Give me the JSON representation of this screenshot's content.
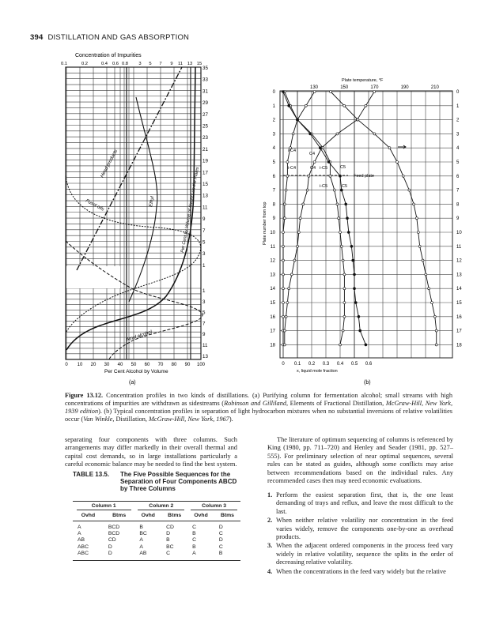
{
  "header": {
    "page_number": "394",
    "running_title": "DISTILLATION AND GAS ABSORPTION"
  },
  "figure_a": {
    "top_title": "Concentration of Impurities",
    "top_ticks": [
      "0.1",
      "0.2",
      "0.4",
      "0.6",
      "0.8",
      "3",
      "5",
      "7",
      "9",
      "11",
      "13",
      "15"
    ],
    "right_ticks_upper": [
      "35",
      "33",
      "31",
      "29",
      "27",
      "25",
      "23",
      "21",
      "19",
      "17",
      "15",
      "13",
      "11",
      "9",
      "7",
      "5",
      "3",
      "1"
    ],
    "right_ticks_lower": [
      "1",
      "3",
      "5",
      "7",
      "9",
      "11",
      "13"
    ],
    "bottom_ticks": [
      "0",
      "10",
      "20",
      "30",
      "40",
      "50",
      "60",
      "70",
      "80",
      "90",
      "100"
    ],
    "xlabel": "Per Cent Alcohol by Volume",
    "curve_labels": {
      "head": "Head products",
      "fusel": "Fusel oils",
      "ethyl": "Ethyl",
      "alcohol": "Per Cent by Volume of Alcohol on the Plates",
      "amyl": "Amyl alcohol"
    },
    "panel": "(a)"
  },
  "figure_b": {
    "top_title": "Plate temperature, °F",
    "top_ticks": [
      "130",
      "150",
      "170",
      "190",
      "210"
    ],
    "plates": [
      "0",
      "1",
      "2",
      "3",
      "4",
      "5",
      "6",
      "7",
      "8",
      "9",
      "10",
      "11",
      "12",
      "13",
      "14",
      "15",
      "16",
      "17",
      "18"
    ],
    "ylabel": "Plate number from top",
    "bottom_ticks": [
      "0",
      "0.1",
      "0.2",
      "0.3",
      "0.4",
      "0.5",
      "0.6"
    ],
    "xlabel": "x, liquid mole fraction",
    "curve_labels": {
      "ic4_a": "i-C4",
      "c4_a": "C4",
      "ic4_b": "i-C4",
      "c4_b": "C4",
      "ic5_a": "i-C5",
      "c5_a": "C5",
      "ic5_b": "i-C5",
      "c5_b": "C5"
    },
    "feed_label": "Feed plate",
    "panel": "(b)"
  },
  "caption": {
    "label": "Figure 13.12.",
    "part1": " Concentration profiles in two kinds of distillations. (a) Purifying column for fermentation alcohol; small streams with high concentrations of impurities are withdrawn as sidestreams (",
    "cite1_auth": "Robinson and Gilliland",
    "part2": ", Elements of Fractional Distillation, ",
    "cite1_pub": "McGraw-Hill, New York, 1939 edition",
    "part3": "). (b) Typical concentration profiles in separation of light hydrocarbon mixtures when no substantial inversions of relative volatilities occur (",
    "cite2_auth": "Van Winkle",
    "part4": ", Distillation, ",
    "cite2_pub": "McGraw-Hill, New York, 1967",
    "part5": ")."
  },
  "left_text": "separating four components with three columns. Such arrangements may differ markedly in their overall thermal and capital cost demands, so in large installations particularly a careful economic balance may be needed to find the best system.",
  "table": {
    "label": "TABLE 13.5.",
    "title": "The Five Possible Sequences for the Separation of Four Components ABCD by Three Columns",
    "groups": [
      "Column 1",
      "Column 2",
      "Column 3"
    ],
    "subheaders": [
      "Ovhd",
      "Btms",
      "Ovhd",
      "Btms",
      "Ovhd",
      "Btms"
    ],
    "rows": [
      [
        "A",
        "BCD",
        "B",
        "CD",
        "C",
        "D"
      ],
      [
        "A",
        "BCD",
        "BC",
        "D",
        "B",
        "C"
      ],
      [
        "AB",
        "CD",
        "A",
        "B",
        "C",
        "D"
      ],
      [
        "ABC",
        "D",
        "A",
        "BC",
        "B",
        "C"
      ],
      [
        "ABC",
        "D",
        "AB",
        "C",
        "A",
        "B"
      ]
    ]
  },
  "right_text": "The literature of optimum sequencing of columns is referenced by King (1980, pp. 711–720) and Henley and Seader (1981, pp. 527–555). For preliminary selection of near optimal sequences, several rules can be stated as guides, although some conflicts may arise between recommendations based on the individual rules. Any recommended cases then may need economic evaluations.",
  "rules": [
    {
      "num": "1.",
      "text": "Perform the easiest separation first, that is, the one least demanding of trays and reflux, and leave the most difficult to the last."
    },
    {
      "num": "2.",
      "text": "When neither relative volatility nor concentration in the feed varies widely, remove the components one-by-one as overhead products."
    },
    {
      "num": "3.",
      "text": "When the adjacent ordered components in the process feed vary widely in relative volatility, sequence the splits in the order of decreasing relative volatility."
    },
    {
      "num": "4.",
      "text": "When the concentrations in the feed vary widely but the relative"
    }
  ]
}
